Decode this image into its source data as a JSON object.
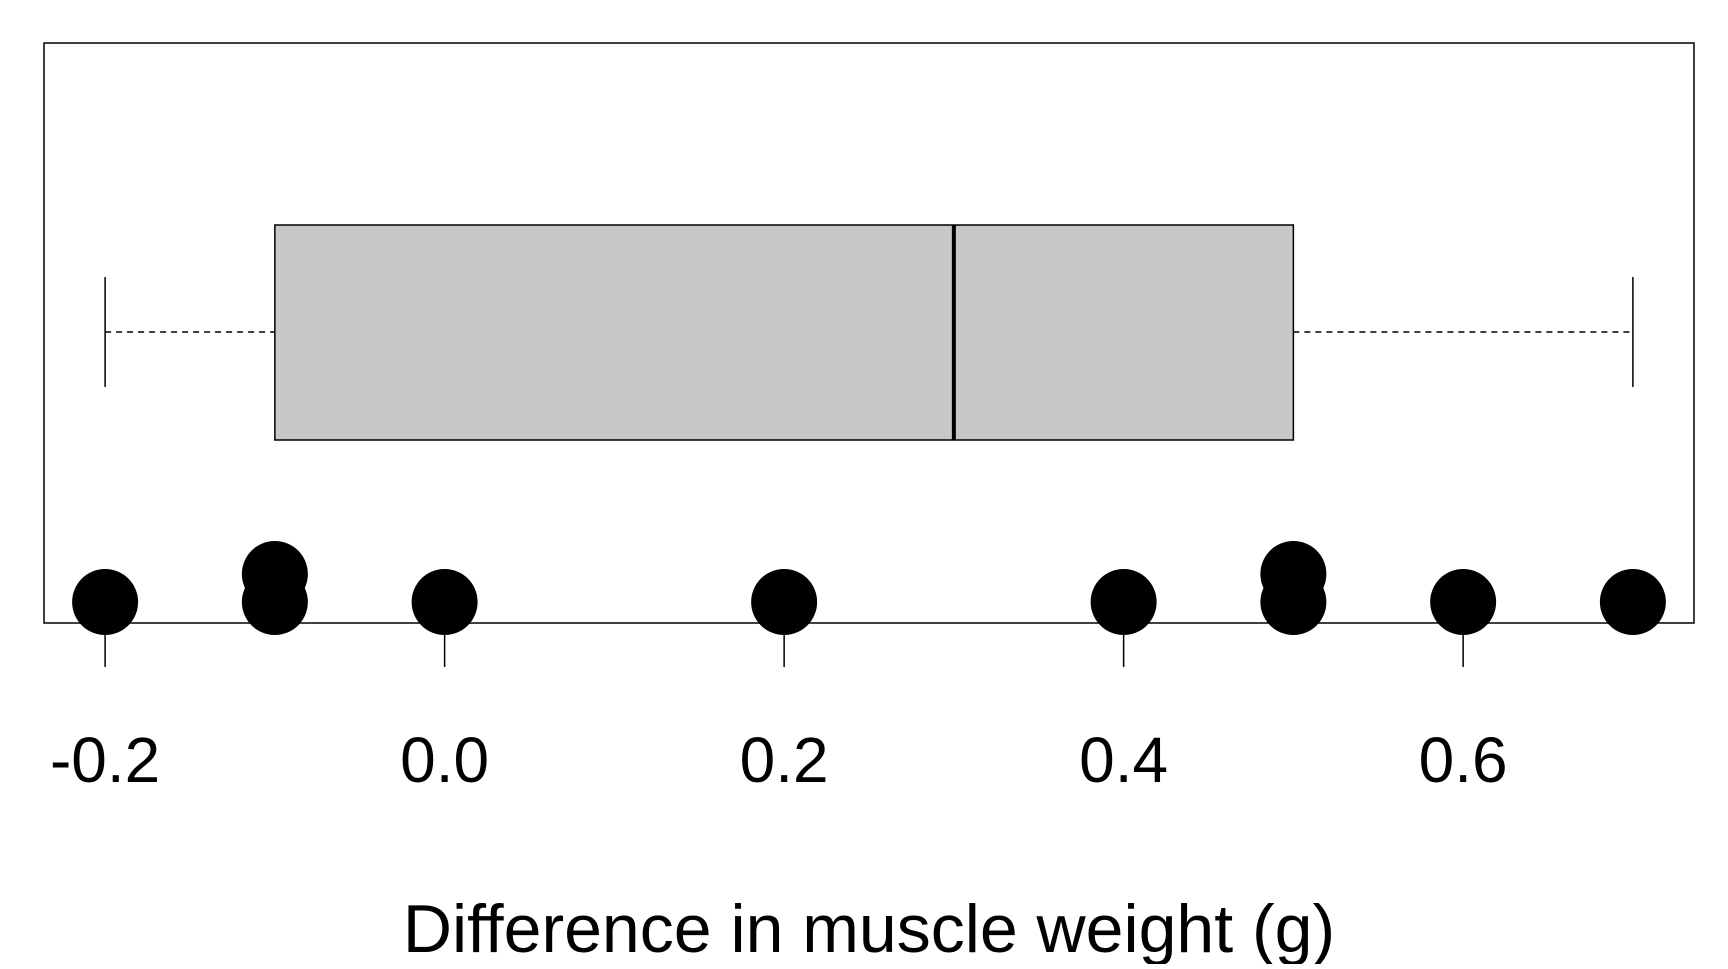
{
  "chart_data": {
    "type": "boxplot",
    "orientation": "horizontal",
    "title": "",
    "xlabel": "Difference in muscle weight (g)",
    "ylabel": "",
    "xlim": [
      -0.236,
      0.736
    ],
    "x_ticks": [
      -0.2,
      0.0,
      0.2,
      0.4,
      0.6
    ],
    "x_tick_labels": [
      "-0.2",
      "0.0",
      "0.2",
      "0.4",
      "0.6"
    ],
    "box": {
      "min": -0.2,
      "q1": -0.1,
      "median": 0.3,
      "q3": 0.5,
      "max": 0.7,
      "fill": "#c8c8c8",
      "stroke": "#000000"
    },
    "points": [
      {
        "x": -0.2,
        "stack": 0
      },
      {
        "x": -0.1,
        "stack": 0
      },
      {
        "x": -0.1,
        "stack": 1
      },
      {
        "x": 0.0,
        "stack": 0
      },
      {
        "x": 0.2,
        "stack": 0
      },
      {
        "x": 0.4,
        "stack": 0
      },
      {
        "x": 0.5,
        "stack": 0
      },
      {
        "x": 0.5,
        "stack": 1
      },
      {
        "x": 0.6,
        "stack": 0
      },
      {
        "x": 0.7,
        "stack": 0
      }
    ],
    "point_color": "#000000",
    "grid": false,
    "legend": false
  }
}
